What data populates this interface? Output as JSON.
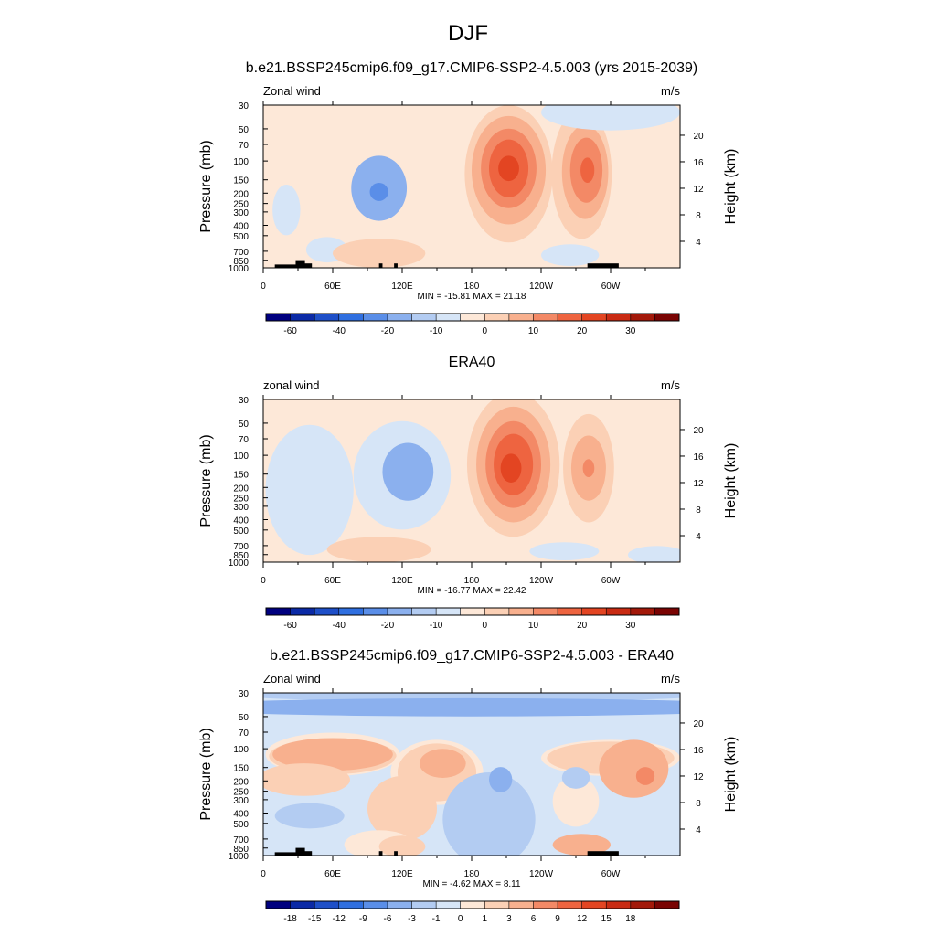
{
  "figure_title": "DJF",
  "chart_data": [
    {
      "type": "heatmap",
      "title": "b.e21.BSSP245cmip6.f09_g17.CMIP6-SSP2-4.5.003 (yrs 2015-2039)",
      "left_label": "Zonal wind",
      "right_label": "m/s",
      "ylabel": "Pressure (mb)",
      "ylabel_right": "Height (km)",
      "stats": "MIN = -15.81  MAX =  21.18",
      "x_ticks": [
        "0",
        "60E",
        "120E",
        "180",
        "120W",
        "60W"
      ],
      "y_ticks": [
        "30",
        "50",
        "70",
        "100",
        "150",
        "200",
        "250",
        "300",
        "400",
        "500",
        "700",
        "850",
        "1000"
      ],
      "height_ticks": [
        "20",
        "16",
        "12",
        "8",
        "4"
      ],
      "colorbar_ticks": [
        "-60",
        "-40",
        "-20",
        "-10",
        "0",
        "10",
        "20",
        "30"
      ],
      "colorbar_colors": [
        "#00007f",
        "#0b2aa6",
        "#1e4fc8",
        "#2f6fe0",
        "#5a8ee8",
        "#8bb0ee",
        "#b3ccf2",
        "#d6e5f7",
        "#fde8d8",
        "#fbd0b5",
        "#f8b08e",
        "#f38966",
        "#ee6440",
        "#e34522",
        "#c92b13",
        "#a3190a",
        "#7a0403"
      ],
      "field": {
        "background_level": 0,
        "features": [
          {
            "lon": 100,
            "lev": 2.2,
            "a": 24,
            "b": 0.9,
            "level": -3
          },
          {
            "lon": 100,
            "lev": 2.1,
            "a": 8,
            "b": 0.25,
            "level": -4
          },
          {
            "lon": 212,
            "lev": 2.6,
            "a": 38,
            "b": 1.9,
            "level": 1
          },
          {
            "lon": 212,
            "lev": 2.7,
            "a": 32,
            "b": 1.5,
            "level": 2
          },
          {
            "lon": 212,
            "lev": 2.75,
            "a": 24,
            "b": 1.1,
            "level": 3
          },
          {
            "lon": 212,
            "lev": 2.75,
            "a": 17,
            "b": 0.8,
            "level": 4
          },
          {
            "lon": 212,
            "lev": 2.75,
            "a": 9,
            "b": 0.35,
            "level": 5
          },
          {
            "lon": 275,
            "lev": 2.6,
            "a": 26,
            "b": 1.8,
            "level": 1
          },
          {
            "lon": 278,
            "lev": 2.65,
            "a": 20,
            "b": 1.3,
            "level": 2
          },
          {
            "lon": 279,
            "lev": 2.7,
            "a": 14,
            "b": 0.9,
            "level": 3
          },
          {
            "lon": 280,
            "lev": 2.7,
            "a": 6,
            "b": 0.35,
            "level": 4
          },
          {
            "lon": 20,
            "lev": 1.6,
            "a": 12,
            "b": 0.7,
            "level": -1
          },
          {
            "lon": 55,
            "lev": 0.5,
            "a": 18,
            "b": 0.35,
            "level": -1
          },
          {
            "lon": 100,
            "lev": 0.4,
            "a": 40,
            "b": 0.4,
            "level": 1
          },
          {
            "lon": 265,
            "lev": 0.35,
            "a": 25,
            "b": 0.3,
            "level": -1
          },
          {
            "lon": 300,
            "lev": 4.3,
            "a": 60,
            "b": 0.5,
            "level": -1
          }
        ]
      },
      "terrain": [
        [
          10,
          30,
          0.3
        ],
        [
          28,
          36,
          0.7
        ],
        [
          33,
          42,
          0.4
        ],
        [
          100,
          103,
          0.4
        ],
        [
          113,
          116,
          0.4
        ],
        [
          280,
          307,
          0.4
        ]
      ]
    },
    {
      "type": "heatmap",
      "title": "ERA40",
      "left_label": "zonal wind",
      "right_label": "m/s",
      "ylabel": "Pressure (mb)",
      "ylabel_right": "Height (km)",
      "stats": "MIN = -16.77  MAX =  22.42",
      "x_ticks": [
        "0",
        "60E",
        "120E",
        "180",
        "120W",
        "60W"
      ],
      "y_ticks": [
        "30",
        "50",
        "70",
        "100",
        "150",
        "200",
        "250",
        "300",
        "400",
        "500",
        "700",
        "850",
        "1000"
      ],
      "height_ticks": [
        "20",
        "16",
        "12",
        "8",
        "4"
      ],
      "colorbar_ticks": [
        "-60",
        "-40",
        "-20",
        "-10",
        "0",
        "10",
        "20",
        "30"
      ],
      "colorbar_colors": [
        "#00007f",
        "#0b2aa6",
        "#1e4fc8",
        "#2f6fe0",
        "#5a8ee8",
        "#8bb0ee",
        "#b3ccf2",
        "#d6e5f7",
        "#fde8d8",
        "#fbd0b5",
        "#f8b08e",
        "#f38966",
        "#ee6440",
        "#e34522",
        "#c92b13",
        "#a3190a",
        "#7a0403"
      ],
      "field": {
        "background_level": 0,
        "features": [
          {
            "lon": 40,
            "lev": 2.0,
            "a": 38,
            "b": 1.8,
            "level": -1
          },
          {
            "lon": 120,
            "lev": 2.4,
            "a": 42,
            "b": 1.5,
            "level": -1
          },
          {
            "lon": 125,
            "lev": 2.5,
            "a": 22,
            "b": 0.8,
            "level": -3
          },
          {
            "lon": 216,
            "lev": 2.7,
            "a": 40,
            "b": 2.0,
            "level": 1
          },
          {
            "lon": 216,
            "lev": 2.7,
            "a": 32,
            "b": 1.6,
            "level": 2
          },
          {
            "lon": 216,
            "lev": 2.7,
            "a": 24,
            "b": 1.2,
            "level": 3
          },
          {
            "lon": 216,
            "lev": 2.7,
            "a": 17,
            "b": 0.85,
            "level": 4
          },
          {
            "lon": 214,
            "lev": 2.6,
            "a": 9,
            "b": 0.4,
            "level": 5
          },
          {
            "lon": 281,
            "lev": 2.6,
            "a": 22,
            "b": 1.5,
            "level": 1
          },
          {
            "lon": 281,
            "lev": 2.6,
            "a": 15,
            "b": 0.9,
            "level": 2
          },
          {
            "lon": 281,
            "lev": 2.6,
            "a": 5,
            "b": 0.25,
            "level": 3
          },
          {
            "lon": 100,
            "lev": 0.35,
            "a": 45,
            "b": 0.35,
            "level": 1
          },
          {
            "lon": 260,
            "lev": 0.3,
            "a": 30,
            "b": 0.25,
            "level": -1
          },
          {
            "lon": 340,
            "lev": 0.2,
            "a": 25,
            "b": 0.25,
            "level": -1
          }
        ]
      },
      "terrain": []
    },
    {
      "type": "heatmap",
      "title": "b.e21.BSSP245cmip6.f09_g17.CMIP6-SSP2-4.5.003 - ERA40",
      "left_label": "Zonal wind",
      "right_label": "m/s",
      "ylabel": "Pressure (mb)",
      "ylabel_right": "Height (km)",
      "stats": "MIN =  -4.62  MAX =   8.11",
      "x_ticks": [
        "0",
        "60E",
        "120E",
        "180",
        "120W",
        "60W"
      ],
      "y_ticks": [
        "30",
        "50",
        "70",
        "100",
        "150",
        "200",
        "250",
        "300",
        "400",
        "500",
        "700",
        "850",
        "1000"
      ],
      "height_ticks": [
        "20",
        "16",
        "12",
        "8",
        "4"
      ],
      "colorbar_ticks": [
        "-18",
        "-15",
        "-12",
        "-9",
        "-6",
        "-3",
        "-1",
        "0",
        "1",
        "3",
        "6",
        "9",
        "12",
        "15",
        "18"
      ],
      "colorbar_colors": [
        "#00007f",
        "#0b2aa6",
        "#1e4fc8",
        "#2f6fe0",
        "#5a8ee8",
        "#8bb0ee",
        "#b3ccf2",
        "#d6e5f7",
        "#fde8d8",
        "#fbd0b5",
        "#f8b08e",
        "#f38966",
        "#ee6440",
        "#e34522",
        "#c92b13",
        "#a3190a",
        "#7a0403"
      ],
      "field": {
        "background_level": -1,
        "features": [
          {
            "lon": 180,
            "lev": 4.6,
            "a": 250,
            "b": 0.35,
            "level": -2
          },
          {
            "lon": 180,
            "lev": 4.1,
            "a": 260,
            "b": 0.25,
            "level": -3
          },
          {
            "lon": 60,
            "lev": 2.8,
            "a": 58,
            "b": 0.6,
            "level": 0
          },
          {
            "lon": 60,
            "lev": 2.75,
            "a": 55,
            "b": 0.5,
            "level": 1
          },
          {
            "lon": 60,
            "lev": 2.8,
            "a": 52,
            "b": 0.45,
            "level": 2
          },
          {
            "lon": 35,
            "lev": 2.1,
            "a": 40,
            "b": 0.45,
            "level": 1
          },
          {
            "lon": 150,
            "lev": 2.3,
            "a": 40,
            "b": 0.9,
            "level": 0
          },
          {
            "lon": 150,
            "lev": 2.3,
            "a": 34,
            "b": 0.8,
            "level": 1
          },
          {
            "lon": 155,
            "lev": 2.55,
            "a": 20,
            "b": 0.4,
            "level": 2
          },
          {
            "lon": 120,
            "lev": 1.3,
            "a": 30,
            "b": 0.9,
            "level": 1
          },
          {
            "lon": 300,
            "lev": 2.7,
            "a": 60,
            "b": 0.5,
            "level": 0
          },
          {
            "lon": 300,
            "lev": 2.7,
            "a": 55,
            "b": 0.45,
            "level": 1
          },
          {
            "lon": 320,
            "lev": 2.4,
            "a": 30,
            "b": 0.8,
            "level": 2
          },
          {
            "lon": 330,
            "lev": 2.2,
            "a": 8,
            "b": 0.25,
            "level": 3
          },
          {
            "lon": 270,
            "lev": 1.5,
            "a": 20,
            "b": 0.7,
            "level": 0
          },
          {
            "lon": 195,
            "lev": 1.0,
            "a": 40,
            "b": 1.3,
            "level": -2
          },
          {
            "lon": 205,
            "lev": 2.1,
            "a": 10,
            "b": 0.35,
            "level": -3
          },
          {
            "lon": 270,
            "lev": 2.15,
            "a": 12,
            "b": 0.3,
            "level": -2
          },
          {
            "lon": 40,
            "lev": 1.1,
            "a": 30,
            "b": 0.35,
            "level": -2
          },
          {
            "lon": 100,
            "lev": 0.3,
            "a": 30,
            "b": 0.4,
            "level": 0
          },
          {
            "lon": 120,
            "lev": 0.25,
            "a": 20,
            "b": 0.3,
            "level": 1
          },
          {
            "lon": 275,
            "lev": 0.3,
            "a": 25,
            "b": 0.3,
            "level": 2
          }
        ]
      },
      "terrain": [
        [
          10,
          30,
          0.3
        ],
        [
          28,
          36,
          0.7
        ],
        [
          33,
          42,
          0.4
        ],
        [
          100,
          103,
          0.4
        ],
        [
          113,
          116,
          0.4
        ],
        [
          280,
          307,
          0.4
        ]
      ]
    }
  ]
}
